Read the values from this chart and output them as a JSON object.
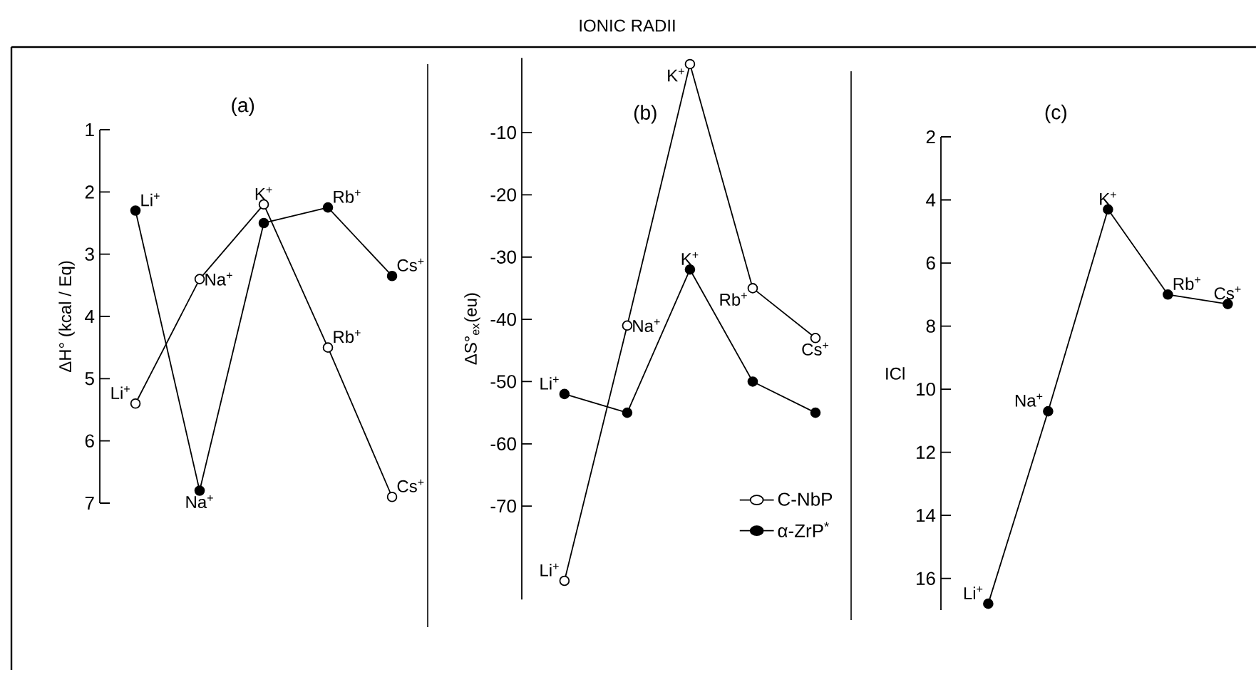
{
  "chart_data": [
    {
      "type": "line",
      "title": "(a)",
      "ylabel": "ΔH° (kcal / Eq)",
      "annotations": [
        "IONIC RADII"
      ],
      "categories": [
        null,
        null,
        null,
        null,
        null
      ],
      "ylim": [
        7,
        1
      ],
      "yticks": [
        1,
        2,
        3,
        4,
        5,
        6,
        7
      ],
      "tick_labels": "y",
      "marker": "circle",
      "series": [
        {
          "color": "#000000",
          "values": [
            2.3,
            6.8,
            2.5,
            2.25,
            3.35
          ],
          "value_labels": [
            "Li$^{+}$",
            "Na$^{+}$",
            null,
            "Rb$^{+}$",
            "Cs$^{+}$"
          ]
        },
        {
          "color": "#ffffff",
          "values": [
            5.4,
            3.4,
            2.2,
            4.5,
            6.9
          ],
          "value_labels": [
            "Li$^{+}$",
            "Na$^{+}$",
            "K$^{+}$",
            "Rb$^{+}$",
            "Cs$^{+}$"
          ]
        }
      ]
    },
    {
      "type": "line",
      "title": "(b)",
      "ylabel": "ΔS°$_{ex}$(eu)",
      "categories": [
        null,
        null,
        null,
        null,
        null
      ],
      "ylim": [
        -85,
        2
      ],
      "yticks": [
        -70,
        -60,
        -50,
        -40,
        -30,
        -20,
        -10
      ],
      "tick_labels": "y",
      "marker": "circle",
      "legend": "bottom right",
      "series": [
        {
          "name": "C-NbP",
          "color": "#ffffff",
          "values": [
            -82,
            -41,
            1,
            -35,
            -43
          ],
          "value_labels": [
            "Li$^{+}$",
            "Na$^{+}$",
            "K$^{+}$",
            "Rb$^{+}$",
            "Cs$^{+}$"
          ]
        },
        {
          "name": "α-ZrP$^{*}$",
          "color": "#000000",
          "values": [
            -52,
            -55,
            -32,
            -50,
            -55
          ],
          "value_labels": [
            "Li$^{+}$",
            null,
            "K$^{+}$",
            null,
            null
          ]
        }
      ]
    },
    {
      "type": "line",
      "title": "(c)",
      "ylabel": "ICl",
      "categories": [
        null,
        null,
        null,
        null,
        null
      ],
      "ylim": [
        17,
        2
      ],
      "yticks": [
        2,
        4,
        6,
        8,
        10,
        12,
        14,
        16
      ],
      "tick_labels": "y",
      "marker": "circle",
      "series": [
        {
          "color": "#000000",
          "values": [
            16.8,
            10.7,
            4.3,
            7.0,
            7.3
          ],
          "value_labels": [
            "Li$^{+}$",
            "Na$^{+}$",
            "K$^{+}$",
            "Rb$^{+}$",
            "Cs$^{+}$"
          ]
        }
      ]
    }
  ]
}
